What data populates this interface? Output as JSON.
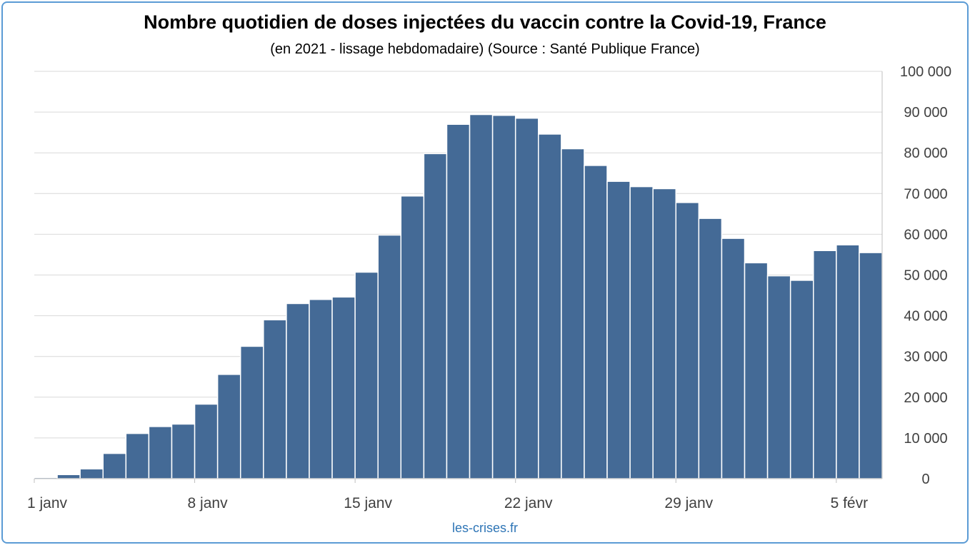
{
  "chart_data": {
    "type": "bar",
    "title": "Nombre quotidien de doses injectées du vaccin contre la Covid-19, France",
    "subtitle": "(en 2021 - lissage hebdomadaire) (Source : Santé Publique France)",
    "x": [
      "2021-01-01",
      "2021-01-02",
      "2021-01-03",
      "2021-01-04",
      "2021-01-05",
      "2021-01-06",
      "2021-01-07",
      "2021-01-08",
      "2021-01-09",
      "2021-01-10",
      "2021-01-11",
      "2021-01-12",
      "2021-01-13",
      "2021-01-14",
      "2021-01-15",
      "2021-01-16",
      "2021-01-17",
      "2021-01-18",
      "2021-01-19",
      "2021-01-20",
      "2021-01-21",
      "2021-01-22",
      "2021-01-23",
      "2021-01-24",
      "2021-01-25",
      "2021-01-26",
      "2021-01-27",
      "2021-01-28",
      "2021-01-29",
      "2021-01-30",
      "2021-01-31",
      "2021-02-01",
      "2021-02-02",
      "2021-02-03",
      "2021-02-04",
      "2021-02-05",
      "2021-02-06"
    ],
    "values": [
      300,
      1000,
      2400,
      6200,
      11100,
      12800,
      13400,
      18300,
      25600,
      32500,
      39000,
      43000,
      44000,
      44600,
      50700,
      59800,
      69400,
      79800,
      87000,
      89400,
      89200,
      88500,
      84600,
      81000,
      76900,
      73000,
      71700,
      71200,
      67800,
      63900,
      59000,
      53000,
      49800,
      48700,
      56000,
      57400,
      55500
    ],
    "ylim": [
      0,
      100000
    ],
    "yticks": [
      "100 000",
      "90 000",
      "80 000",
      "70 000",
      "60 000",
      "50 000",
      "40 000",
      "30 000",
      "20 000",
      "10 000",
      "0"
    ],
    "xtick_labels": [
      {
        "index": 0,
        "label": "1 janv"
      },
      {
        "index": 7,
        "label": "8 janv"
      },
      {
        "index": 14,
        "label": "15 janv"
      },
      {
        "index": 21,
        "label": "22 janv"
      },
      {
        "index": 28,
        "label": "29 janv"
      },
      {
        "index": 35,
        "label": "5 févr"
      }
    ],
    "y_axis_side": "right",
    "grid": true,
    "legend": false,
    "bar_color": "#446a96"
  },
  "credit": "les-crises.fr"
}
